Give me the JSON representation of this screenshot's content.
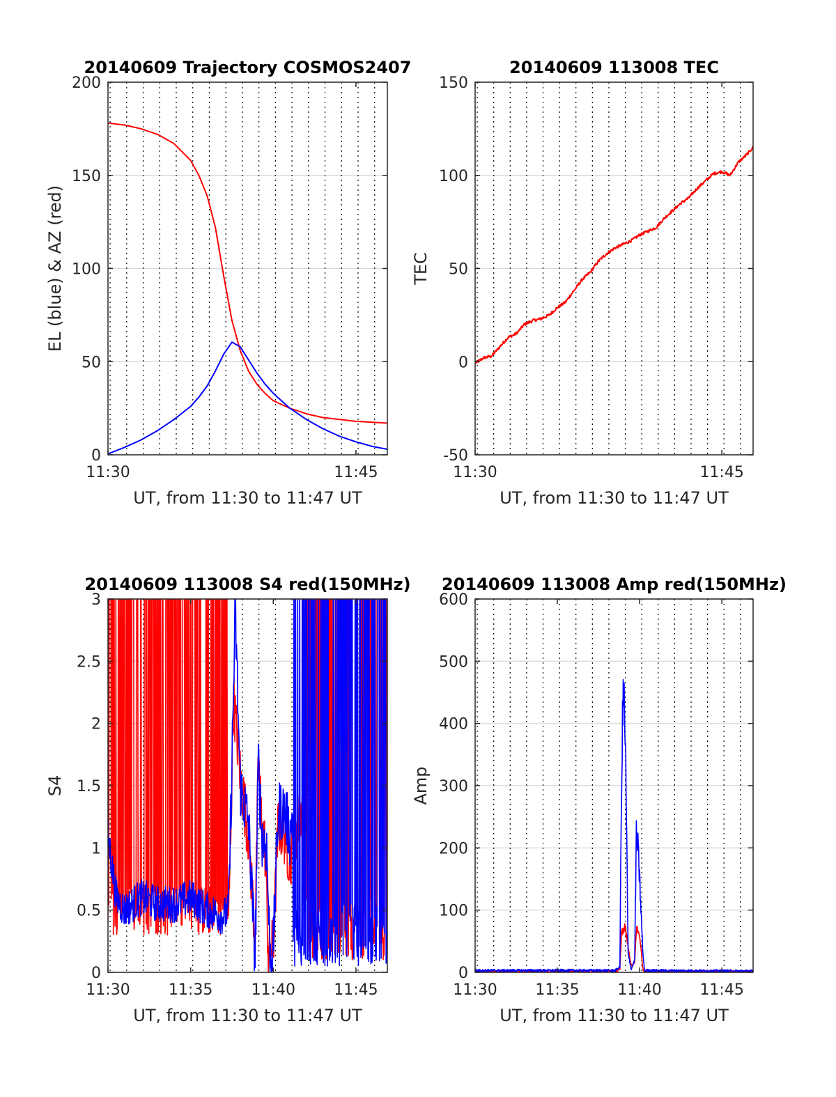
{
  "colors": {
    "red": "#ff0000",
    "blue": "#0000ff",
    "grid": "#dcdcdc",
    "axis": "#262626"
  },
  "chart_data": [
    {
      "type": "line",
      "title": "20140609 Trajectory COSMOS2407",
      "xlabel": "UT, from 11:30 to 11:47 UT",
      "ylabel": "EL (blue) & AZ (red)",
      "xlim": [
        0,
        16.9
      ],
      "ylim": [
        0,
        200
      ],
      "xticks": [
        0,
        15
      ],
      "xtick_labels": [
        "11:30",
        "11:45"
      ],
      "yticks": [
        0,
        50,
        100,
        150,
        200
      ],
      "ytick_labels": [
        "0",
        "50",
        "100",
        "150",
        "200"
      ],
      "grid": "horizontal solid, vertical dotted every ~1 min",
      "series": [
        {
          "color": "red",
          "x": [
            0,
            1,
            2,
            3,
            4,
            5,
            5.5,
            6,
            6.5,
            7,
            7.5,
            8,
            8.5,
            9,
            9.5,
            10,
            11,
            12,
            13,
            14,
            15,
            16,
            16.9
          ],
          "values": [
            178,
            177,
            175,
            172,
            167,
            158,
            150,
            139,
            122,
            96,
            72,
            56,
            45,
            38,
            33,
            29,
            25,
            22,
            20,
            19,
            18,
            17.5,
            17
          ]
        },
        {
          "color": "blue",
          "x": [
            0,
            1,
            2,
            3,
            4,
            5,
            5.5,
            6,
            6.5,
            7,
            7.5,
            8,
            8.5,
            9,
            9.5,
            10,
            11,
            12,
            13,
            14,
            15,
            16,
            16.9
          ],
          "values": [
            0.5,
            4,
            8,
            13,
            19,
            26,
            31,
            37,
            45,
            54,
            60.5,
            58,
            51,
            44,
            38,
            33,
            25,
            19,
            14,
            10,
            7,
            4.5,
            3
          ]
        }
      ]
    },
    {
      "type": "line",
      "title": "20140609 113008 TEC",
      "xlabel": "UT, from 11:30 to 11:47 UT",
      "ylabel": "TEC",
      "xlim": [
        0,
        16.9
      ],
      "ylim": [
        -50,
        150
      ],
      "xticks": [
        0,
        15
      ],
      "xtick_labels": [
        "11:30",
        "11:45"
      ],
      "yticks": [
        -50,
        0,
        50,
        100,
        150
      ],
      "ytick_labels": [
        "-50",
        "0",
        "50",
        "100",
        "150"
      ],
      "series": [
        {
          "color": "red",
          "x": [
            0,
            0.5,
            1,
            1.5,
            2,
            2.5,
            3,
            3.5,
            4,
            4.5,
            5,
            5.5,
            6,
            6.5,
            7,
            7.5,
            8,
            8.5,
            9,
            9.5,
            10,
            10.5,
            11,
            11.5,
            12,
            12.5,
            13,
            13.5,
            14,
            14.5,
            15,
            15.5,
            16,
            16.5,
            16.9
          ],
          "values": [
            -1,
            2,
            3,
            8,
            13,
            15,
            20,
            22,
            23,
            25,
            29,
            32,
            38,
            44,
            48,
            54,
            58,
            61,
            63,
            65,
            68,
            70,
            72,
            77,
            81,
            85,
            88,
            93,
            97,
            101,
            102,
            100,
            107,
            111,
            115
          ]
        }
      ]
    },
    {
      "type": "line",
      "title": "20140609 113008 S4 red(150MHz)",
      "xlabel": "UT, from 11:30 to 11:47 UT",
      "ylabel": "S4",
      "xlim": [
        0,
        16.9
      ],
      "ylim": [
        0,
        3
      ],
      "xticks": [
        0,
        5,
        10,
        15
      ],
      "xtick_labels": [
        "11:30",
        "11:35",
        "11:40",
        "11:45"
      ],
      "yticks": [
        0,
        0.5,
        1,
        1.5,
        2,
        2.5,
        3
      ],
      "ytick_labels": [
        "0",
        "0.5",
        "1",
        "1.5",
        "2",
        "2.5",
        "3"
      ],
      "series": [
        {
          "color": "red",
          "note": "noisy; saturates 0-3 before 11:37 and after 11:42",
          "x": [
            0,
            7.3,
            7.6,
            8,
            8.5,
            8.9,
            9.1,
            9.3,
            9.5,
            9.7,
            10,
            10.3,
            10.7,
            11,
            11.5,
            12,
            16.9
          ],
          "values": [
            0.5,
            0.4,
            2.2,
            1.6,
            1.1,
            0.3,
            1.7,
            1.2,
            1.0,
            0.15,
            0.2,
            1.2,
            1.1,
            0.9,
            1.2,
            1.5,
            1.5
          ]
        },
        {
          "color": "blue",
          "x": [
            0,
            0.5,
            1,
            2,
            3,
            4,
            5,
            6,
            7,
            7.3,
            7.7,
            8,
            8.5,
            8.9,
            9.1,
            9.3,
            9.6,
            9.8,
            10,
            10.3,
            10.7,
            11,
            11.5,
            12,
            12.5,
            13,
            14,
            15,
            16,
            16.9
          ],
          "values": [
            1.1,
            0.6,
            0.5,
            0.6,
            0.55,
            0.55,
            0.6,
            0.5,
            0.45,
            0.5,
            2.9,
            1.5,
            1.2,
            0.12,
            1.7,
            1.1,
            1.0,
            0.15,
            0.2,
            1.3,
            1.3,
            1.1,
            1.6,
            2.0,
            1.8,
            1.6,
            1.5,
            1.4,
            1.4,
            1.5
          ]
        }
      ]
    },
    {
      "type": "line",
      "title": "20140609 113008 Amp red(150MHz)",
      "xlabel": "UT, from 11:30 to 11:47 UT",
      "ylabel": "Amp",
      "xlim": [
        0,
        16.9
      ],
      "ylim": [
        0,
        600
      ],
      "xticks": [
        0,
        5,
        10,
        15
      ],
      "xtick_labels": [
        "11:30",
        "11:35",
        "11:40",
        "11:45"
      ],
      "yticks": [
        0,
        100,
        200,
        300,
        400,
        500,
        600
      ],
      "ytick_labels": [
        "0",
        "100",
        "200",
        "300",
        "400",
        "500",
        "600"
      ],
      "series": [
        {
          "color": "red",
          "x": [
            0,
            8.5,
            8.8,
            8.9,
            9.1,
            9.3,
            9.5,
            9.7,
            9.8,
            10,
            10.2,
            10.3,
            16.9
          ],
          "values": [
            1,
            1,
            5,
            60,
            75,
            40,
            10,
            15,
            70,
            60,
            5,
            1,
            1
          ]
        },
        {
          "color": "blue",
          "x": [
            0,
            8.5,
            8.8,
            8.9,
            9.0,
            9.1,
            9.2,
            9.3,
            9.5,
            9.7,
            9.8,
            9.9,
            10.0,
            10.2,
            10.3,
            16.9
          ],
          "values": [
            3,
            3,
            8,
            300,
            450,
            410,
            250,
            30,
            5,
            20,
            220,
            200,
            150,
            30,
            3,
            2
          ]
        }
      ]
    }
  ]
}
